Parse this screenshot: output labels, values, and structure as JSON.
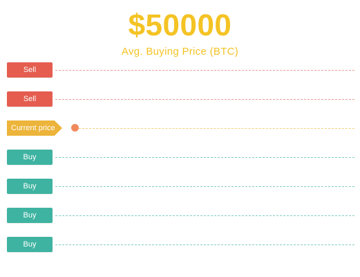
{
  "header": {
    "price": "$50000",
    "subtitle": "Avg. Buying Price (BTC)"
  },
  "levels": [
    {
      "type": "sell",
      "label": "Sell"
    },
    {
      "type": "sell",
      "label": "Sell"
    },
    {
      "type": "current",
      "label": "Current price"
    },
    {
      "type": "buy",
      "label": "Buy"
    },
    {
      "type": "buy",
      "label": "Buy"
    },
    {
      "type": "buy",
      "label": "Buy"
    },
    {
      "type": "buy",
      "label": "Buy"
    }
  ],
  "colors": {
    "accent": "#f4c324",
    "sell": "#e45d4f",
    "buy": "#3fb3a1",
    "current": "#ecb43a",
    "current_marker": "#f08a5d"
  },
  "icons": {
    "current_marker": "circle-marker-icon"
  }
}
